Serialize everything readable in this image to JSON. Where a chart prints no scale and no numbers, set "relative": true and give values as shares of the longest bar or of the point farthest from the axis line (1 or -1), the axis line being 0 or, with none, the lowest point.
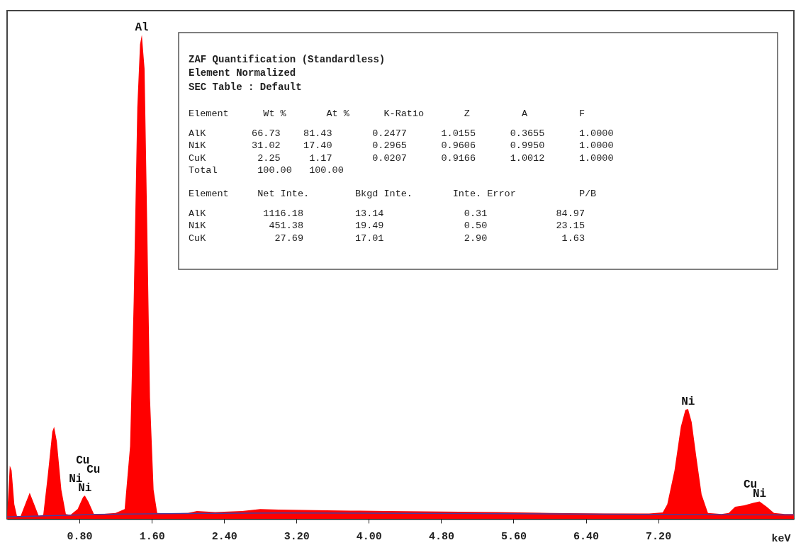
{
  "chart_data": {
    "type": "area",
    "relative": true,
    "xlabel": "keV",
    "grid": false,
    "xlim": [
      0,
      8.7
    ],
    "xticks": [
      {
        "value": 0.8,
        "label": "0.80"
      },
      {
        "value": 1.6,
        "label": "1.60"
      },
      {
        "value": 2.4,
        "label": "2.40"
      },
      {
        "value": 3.2,
        "label": "3.20"
      },
      {
        "value": 4,
        "label": "4.00"
      },
      {
        "value": 4.8,
        "label": "4.80"
      },
      {
        "value": 5.6,
        "label": "5.60"
      },
      {
        "value": 6.4,
        "label": "6.40"
      },
      {
        "value": 7.2,
        "label": "7.20"
      }
    ],
    "series": [
      {
        "color": "#ff0000",
        "x": [
          0.0,
          0.03,
          0.05,
          0.08,
          0.11,
          0.15,
          0.2,
          0.25,
          0.3,
          0.35,
          0.4,
          0.45,
          0.5,
          0.52,
          0.55,
          0.6,
          0.65,
          0.7,
          0.78,
          0.84,
          0.86,
          0.9,
          0.96,
          1.05,
          1.2,
          1.3,
          1.36,
          1.4,
          1.44,
          1.47,
          1.49,
          1.52,
          1.55,
          1.58,
          1.62,
          1.66,
          1.8,
          2.0,
          2.1,
          2.3,
          2.6,
          2.8,
          3.0,
          3.4,
          3.8,
          4.2,
          4.8,
          5.4,
          6.0,
          6.6,
          7.1,
          7.25,
          7.3,
          7.38,
          7.45,
          7.5,
          7.53,
          7.57,
          7.62,
          7.68,
          7.75,
          7.9,
          7.98,
          8.05,
          8.15,
          8.25,
          8.32,
          8.4,
          8.48,
          8.6,
          8.7
        ],
        "values": [
          0.005,
          0.11,
          0.1,
          0.03,
          0.005,
          0.006,
          0.03,
          0.054,
          0.03,
          0.006,
          0.008,
          0.09,
          0.18,
          0.19,
          0.16,
          0.06,
          0.01,
          0.008,
          0.02,
          0.045,
          0.048,
          0.035,
          0.01,
          0.01,
          0.012,
          0.02,
          0.15,
          0.45,
          0.85,
          0.98,
          1.0,
          0.93,
          0.6,
          0.25,
          0.06,
          0.012,
          0.011,
          0.012,
          0.016,
          0.014,
          0.016,
          0.02,
          0.019,
          0.018,
          0.017,
          0.016,
          0.015,
          0.014,
          0.012,
          0.011,
          0.011,
          0.013,
          0.03,
          0.1,
          0.19,
          0.225,
          0.227,
          0.2,
          0.13,
          0.05,
          0.012,
          0.01,
          0.012,
          0.025,
          0.028,
          0.033,
          0.036,
          0.025,
          0.012,
          0.01,
          0.01
        ]
      },
      {
        "type": "line",
        "color": "#4a3c9c",
        "x": [
          0.0,
          1.0,
          2.0,
          3.0,
          5.0,
          7.0,
          8.7
        ],
        "values": [
          0.004,
          0.009,
          0.011,
          0.012,
          0.011,
          0.009,
          0.008
        ]
      }
    ],
    "annotations": [
      {
        "text": "Al",
        "x": 1.49,
        "y": 1.0
      },
      {
        "text": "Ni",
        "x": 0.86,
        "y": 0.048
      },
      {
        "text": "Ni",
        "x": 0.86,
        "y": 0.048
      },
      {
        "text": "Cu",
        "x": 0.86,
        "y": 0.048
      },
      {
        "text": "Cu",
        "x": 0.86,
        "y": 0.048
      },
      {
        "text": "Ni",
        "x": 7.53,
        "y": 0.227
      },
      {
        "text": "Ni",
        "x": 8.32,
        "y": 0.036
      },
      {
        "text": "Cu",
        "x": 8.32,
        "y": 0.036
      },
      "ZAF Quantification (Standardless)",
      "Element Normalized",
      "SEC Table : Default",
      "Element  Wt %  At %  K-Ratio  Z  A  F",
      "AlK  66.73  81.43  0.2477  1.0155  0.3655  1.0000",
      "NiK  31.02  17.40  0.2965  0.9606  0.9950  1.0000",
      "CuK  2.25  1.17  0.0207  0.9166  1.0012  1.0000",
      "Total  100.00  100.00",
      "Element  Net Inte.  Bkgd Inte.  Inte. Error  P/B",
      "AlK  1116.18  13.14  0.31  84.97",
      "NiK  451.38  19.49  0.50  23.15",
      "CuK  27.69  17.01  2.90  1.63"
    ]
  }
}
